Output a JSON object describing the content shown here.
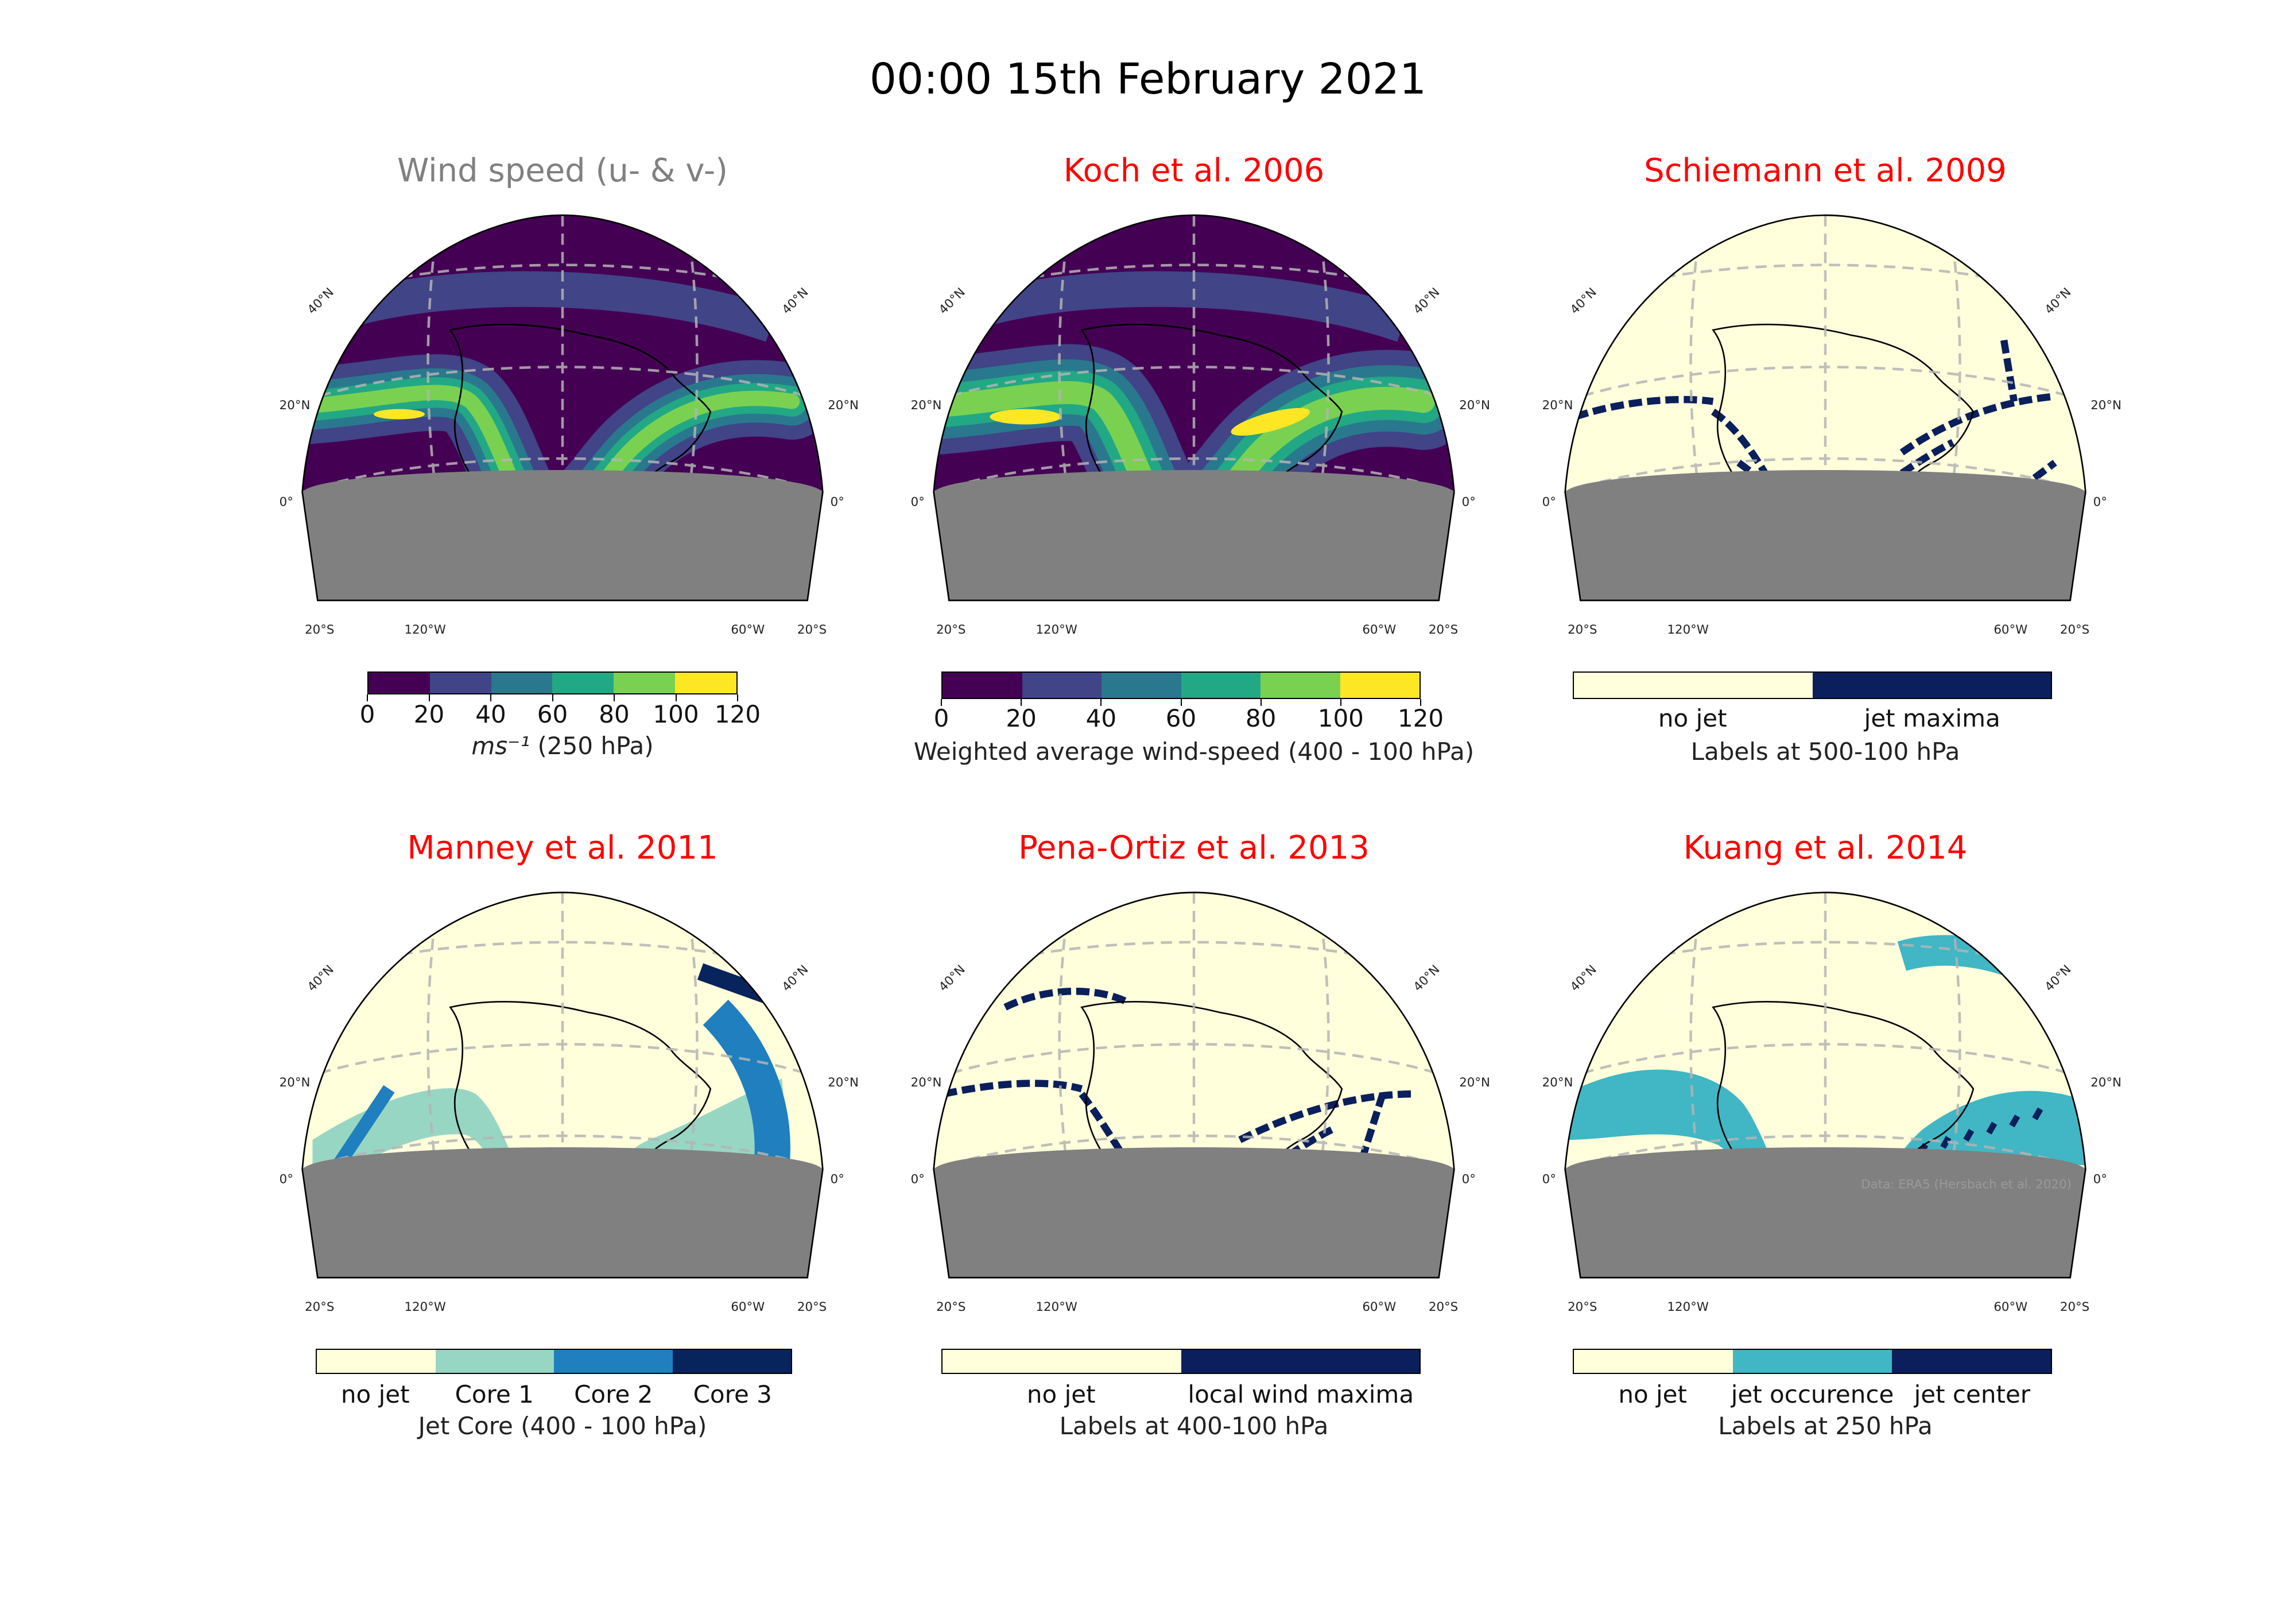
{
  "figure_title": "00:00 15th February 2021",
  "grid_labels": {
    "lat40": "40°N",
    "lat20": "20°N",
    "lat0": "0°",
    "s20": "20°S",
    "w120": "120°W",
    "w60": "60°W",
    "w_short": "W"
  },
  "attribution": "Data: ERA5 (Hersbach et al. 2020)",
  "colors": {
    "viridis": [
      "#440154",
      "#414487",
      "#2a788e",
      "#22a884",
      "#7ad151",
      "#fde725"
    ],
    "no_jet": "#ffffdc",
    "core1": "#98d6c4",
    "core2": "#1f7fbf",
    "core3": "#08245c",
    "jet_occurence": "#41b6c4",
    "jet_center": "#0b1f5c",
    "maxima": "#0b1f5c",
    "space_gray": "#808080",
    "title_gray": "#808080",
    "title_red": "#ff0000"
  },
  "panels": [
    {
      "id": "wind",
      "title": "Wind speed (u- & v-)",
      "title_color": "#808080",
      "colorbar": {
        "type": "continuous",
        "ticks": [
          "0",
          "20",
          "40",
          "60",
          "80",
          "100",
          "120"
        ],
        "label": "ms⁻¹ (250 hPa)"
      }
    },
    {
      "id": "koch",
      "title": "Koch et al. 2006",
      "title_color": "#ff0000",
      "colorbar": {
        "type": "continuous",
        "ticks": [
          "0",
          "20",
          "40",
          "60",
          "80",
          "100",
          "120"
        ],
        "label": "Weighted average wind-speed (400 - 100 hPa)"
      }
    },
    {
      "id": "schiemann",
      "title": "Schiemann et al. 2009",
      "title_color": "#ff0000",
      "colorbar": {
        "type": "categorical",
        "categories": [
          "no jet",
          "jet maxima"
        ],
        "label": "Labels at 500-100 hPa"
      }
    },
    {
      "id": "manney",
      "title": "Manney et al. 2011",
      "title_color": "#ff0000",
      "colorbar": {
        "type": "categorical",
        "categories": [
          "no jet",
          "Core 1",
          "Core 2",
          "Core 3"
        ],
        "label": "Jet Core (400 - 100 hPa)"
      }
    },
    {
      "id": "pena",
      "title": "Pena-Ortiz et al. 2013",
      "title_color": "#ff0000",
      "colorbar": {
        "type": "categorical",
        "categories": [
          "no jet",
          "local wind maxima"
        ],
        "label": "Labels at 400-100 hPa"
      }
    },
    {
      "id": "kuang",
      "title": "Kuang et al. 2014",
      "title_color": "#ff0000",
      "colorbar": {
        "type": "categorical",
        "categories": [
          "no jet",
          "jet occurence",
          "jet center"
        ],
        "label": "Labels at 250 hPa"
      }
    }
  ]
}
